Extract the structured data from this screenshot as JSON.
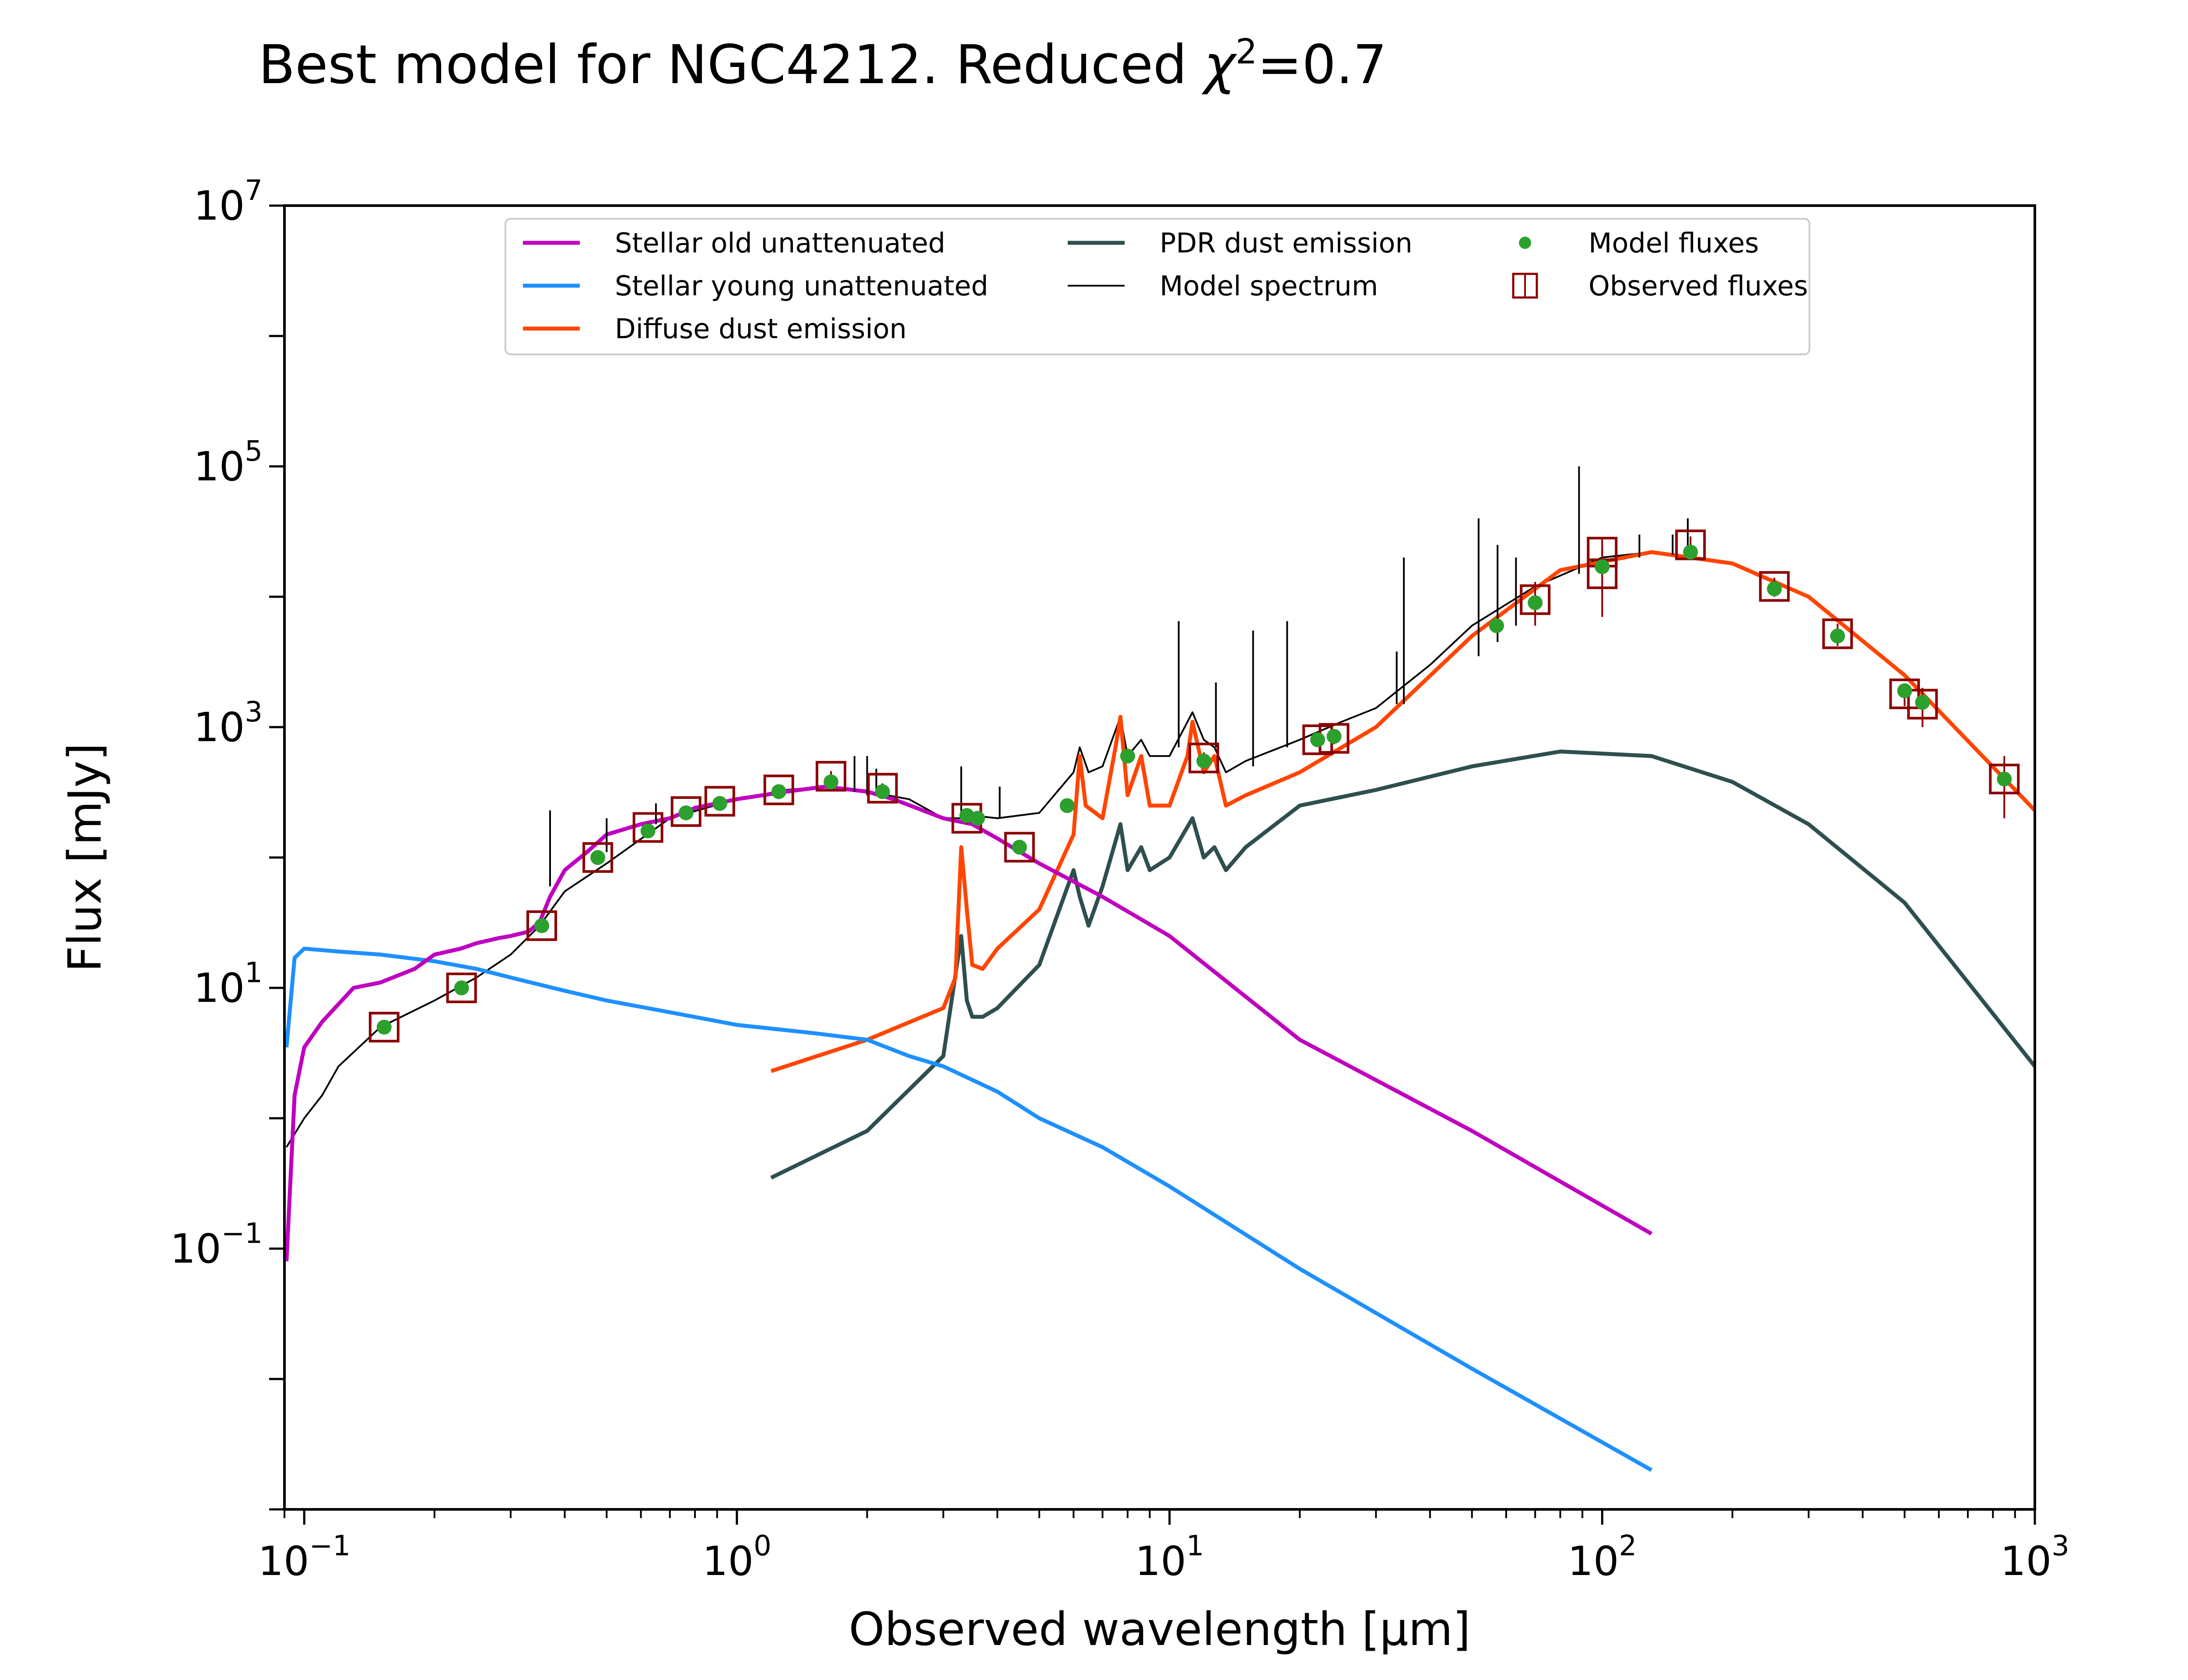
{
  "chart_data": {
    "type": "line",
    "title": "Best model for NGC4212. Reduced χ²=0.7",
    "title_parts": {
      "prefix": "Best model for NGC4212. Reduced ",
      "symbol": "χ",
      "sup": "2",
      "suffix": "=0.7"
    },
    "xlabel": "Observed wavelength [μm]",
    "ylabel": "Flux [mJy]",
    "xscale": "log",
    "yscale": "log",
    "xlim": [
      0.09,
      1000
    ],
    "ylim": [
      0.001,
      10000000
    ],
    "x_ticks": [
      {
        "base": "10",
        "exp": "−1"
      },
      {
        "base": "10",
        "exp": "0"
      },
      {
        "base": "10",
        "exp": "1"
      },
      {
        "base": "10",
        "exp": "2"
      },
      {
        "base": "10",
        "exp": "3"
      }
    ],
    "y_ticks": [
      {
        "base": "10",
        "exp": "−1"
      },
      {
        "base": "10",
        "exp": "1"
      },
      {
        "base": "10",
        "exp": "3"
      },
      {
        "base": "10",
        "exp": "5"
      },
      {
        "base": "10",
        "exp": "7"
      }
    ],
    "grid": false,
    "legend_position": "top-center",
    "colors": {
      "stellar_old": "#bf00bf",
      "stellar_young": "#1e90ff",
      "diffuse_dust": "#ff4500",
      "pdr_dust": "#2f4f4f",
      "model_spectrum": "#000000",
      "model_fluxes": "#2ca02c",
      "observed_fluxes": "#8b0000"
    },
    "legend": [
      {
        "key": "stellar_old",
        "label": "Stellar old unattenuated",
        "style": "line"
      },
      {
        "key": "stellar_young",
        "label": "Stellar young unattenuated",
        "style": "line"
      },
      {
        "key": "diffuse_dust",
        "label": "Diffuse dust emission",
        "style": "line"
      },
      {
        "key": "pdr_dust",
        "label": "PDR dust emission",
        "style": "line"
      },
      {
        "key": "model_spectrum",
        "label": "Model spectrum",
        "style": "thin"
      },
      {
        "key": "model_fluxes",
        "label": "Model fluxes",
        "style": "dot"
      },
      {
        "key": "observed_fluxes",
        "label": "Observed fluxes",
        "style": "square"
      }
    ],
    "series": [
      {
        "key": "stellar_old",
        "name": "Stellar old unattenuated",
        "x": [
          0.091,
          0.095,
          0.1,
          0.11,
          0.12,
          0.13,
          0.15,
          0.18,
          0.2,
          0.23,
          0.25,
          0.28,
          0.3,
          0.33,
          0.35,
          0.37,
          0.4,
          0.45,
          0.5,
          0.6,
          0.7,
          0.8,
          1.0,
          1.3,
          1.6,
          2.0,
          2.3,
          2.6,
          3.0,
          3.5,
          4.0,
          5.0,
          7.0,
          10,
          20,
          50,
          130
        ],
        "y": [
          0.08,
          1.5,
          3.5,
          5.5,
          7.5,
          10,
          11,
          14,
          18,
          20,
          22,
          24,
          25,
          27,
          32,
          50,
          80,
          110,
          150,
          180,
          200,
          240,
          280,
          320,
          350,
          320,
          280,
          240,
          200,
          180,
          140,
          90,
          50,
          25,
          4,
          0.8,
          0.13
        ]
      },
      {
        "key": "stellar_young",
        "name": "Stellar young unattenuated",
        "x": [
          0.091,
          0.095,
          0.1,
          0.12,
          0.15,
          0.2,
          0.25,
          0.3,
          0.4,
          0.5,
          0.7,
          1.0,
          1.5,
          2.0,
          2.5,
          3.0,
          4.0,
          5.0,
          7.0,
          10,
          20,
          50,
          130
        ],
        "y": [
          3.5,
          17,
          20,
          19,
          18,
          16,
          14,
          12,
          9.5,
          8,
          6.5,
          5.2,
          4.5,
          4.0,
          3.0,
          2.5,
          1.6,
          1.0,
          0.6,
          0.3,
          0.07,
          0.012,
          0.002
        ]
      },
      {
        "key": "diffuse_dust",
        "name": "Diffuse dust emission",
        "x": [
          1.2,
          2.0,
          3.0,
          3.2,
          3.3,
          3.4,
          3.5,
          3.7,
          4.0,
          5.0,
          6.0,
          6.2,
          6.4,
          7.0,
          7.5,
          7.7,
          8.0,
          8.6,
          9.0,
          10,
          11.0,
          11.3,
          12.0,
          12.7,
          13.5,
          15,
          20,
          30,
          50,
          80,
          130,
          200,
          300,
          500,
          1000
        ],
        "y": [
          2.3,
          4,
          7,
          12,
          120,
          40,
          15,
          14,
          20,
          40,
          150,
          600,
          250,
          200,
          700,
          1200,
          300,
          600,
          250,
          250,
          600,
          1100,
          450,
          600,
          250,
          300,
          450,
          1000,
          5000,
          16000,
          22000,
          18000,
          10000,
          2500,
          230
        ]
      },
      {
        "key": "pdr_dust",
        "name": "PDR dust emission",
        "x": [
          1.2,
          2.0,
          3.0,
          3.3,
          3.4,
          3.5,
          3.7,
          4.0,
          5.0,
          6.0,
          6.2,
          6.5,
          7.0,
          7.7,
          8.0,
          8.6,
          9.0,
          10,
          11.3,
          12.0,
          12.7,
          13.5,
          15,
          20,
          30,
          50,
          80,
          130,
          200,
          300,
          500,
          1000
        ],
        "y": [
          0.35,
          0.8,
          3,
          25,
          8,
          6,
          6,
          7,
          15,
          80,
          50,
          30,
          60,
          180,
          80,
          120,
          80,
          100,
          200,
          100,
          120,
          80,
          120,
          250,
          330,
          500,
          650,
          600,
          380,
          180,
          45,
          2.5
        ]
      },
      {
        "key": "model_spectrum",
        "name": "Model spectrum",
        "x": [
          0.091,
          0.1,
          0.11,
          0.12,
          0.15,
          0.2,
          0.25,
          0.3,
          0.35,
          0.4,
          0.5,
          0.7,
          1.0,
          1.3,
          1.6,
          2.0,
          2.5,
          3.0,
          3.3,
          3.5,
          4.0,
          5.0,
          6.0,
          6.2,
          6.5,
          7.0,
          7.7,
          8.0,
          8.6,
          9.0,
          10,
          11.3,
          12,
          12.7,
          13.5,
          15,
          20,
          25,
          30,
          40,
          50,
          70,
          100,
          130,
          200,
          300,
          500,
          1000
        ],
        "y": [
          0.6,
          1.0,
          1.5,
          2.5,
          5,
          8,
          12,
          18,
          30,
          55,
          90,
          200,
          280,
          330,
          350,
          320,
          280,
          200,
          200,
          210,
          200,
          220,
          450,
          700,
          450,
          500,
          1200,
          600,
          800,
          600,
          600,
          1300,
          800,
          700,
          450,
          550,
          800,
          1100,
          1400,
          3000,
          6000,
          12000,
          20000,
          22000,
          18000,
          10000,
          2500,
          230
        ]
      },
      {
        "key": "model_spectrum_lines",
        "name": "",
        "lines": [
          {
            "x": 0.37,
            "y0": 60,
            "y1": 230
          },
          {
            "x": 0.5,
            "y0": 110,
            "y1": 200
          },
          {
            "x": 0.65,
            "y0": 180,
            "y1": 260
          },
          {
            "x": 1.87,
            "y0": 320,
            "y1": 600
          },
          {
            "x": 2.0,
            "y0": 300,
            "y1": 600
          },
          {
            "x": 2.1,
            "y0": 300,
            "y1": 480
          },
          {
            "x": 3.3,
            "y0": 200,
            "y1": 500
          },
          {
            "x": 4.05,
            "y0": 200,
            "y1": 350
          },
          {
            "x": 10.5,
            "y0": 700,
            "y1": 6500
          },
          {
            "x": 12.8,
            "y0": 700,
            "y1": 2200
          },
          {
            "x": 15.6,
            "y0": 500,
            "y1": 5500
          },
          {
            "x": 18.7,
            "y0": 700,
            "y1": 6500
          },
          {
            "x": 33.5,
            "y0": 1500,
            "y1": 3800
          },
          {
            "x": 34.8,
            "y0": 1500,
            "y1": 20000
          },
          {
            "x": 51.8,
            "y0": 3500,
            "y1": 40000
          },
          {
            "x": 57.3,
            "y0": 4500,
            "y1": 25000
          },
          {
            "x": 63.2,
            "y0": 6000,
            "y1": 20000
          },
          {
            "x": 88.4,
            "y0": 15000,
            "y1": 100000
          },
          {
            "x": 121.9,
            "y0": 20000,
            "y1": 30000
          },
          {
            "x": 145.5,
            "y0": 21000,
            "y1": 30000
          },
          {
            "x": 157.7,
            "y0": 22000,
            "y1": 40000
          }
        ]
      }
    ],
    "model_fluxes": {
      "x": [
        0.153,
        0.231,
        0.354,
        0.477,
        0.623,
        0.763,
        0.913,
        1.25,
        1.65,
        2.17,
        3.4,
        3.6,
        4.5,
        5.8,
        8.0,
        12,
        22,
        24,
        57,
        70,
        100,
        160,
        250,
        350,
        500,
        550,
        850
      ],
      "y": [
        5,
        10,
        30,
        100,
        160,
        220,
        260,
        320,
        380,
        320,
        210,
        200,
        120,
        250,
        600,
        550,
        800,
        850,
        6000,
        9000,
        17000,
        22000,
        11500,
        5000,
        1900,
        1550,
        400
      ]
    },
    "observed_fluxes": {
      "x": [
        0.153,
        0.231,
        0.354,
        0.477,
        0.623,
        0.763,
        0.913,
        1.25,
        1.65,
        2.17,
        3.4,
        4.5,
        12,
        22,
        24,
        70,
        100,
        100,
        160,
        250,
        350,
        500,
        550,
        850
      ],
      "y": [
        5,
        10,
        30,
        100,
        170,
        225,
        270,
        330,
        420,
        340,
        200,
        120,
        580,
        800,
        820,
        9500,
        15000,
        22000,
        25000,
        12000,
        5200,
        1800,
        1500,
        400
      ],
      "yerr": [
        0.5,
        1,
        3,
        10,
        15,
        20,
        25,
        30,
        40,
        30,
        20,
        10,
        60,
        80,
        80,
        3500,
        8000,
        6000,
        4000,
        2000,
        1000,
        350,
        500,
        200
      ]
    }
  }
}
